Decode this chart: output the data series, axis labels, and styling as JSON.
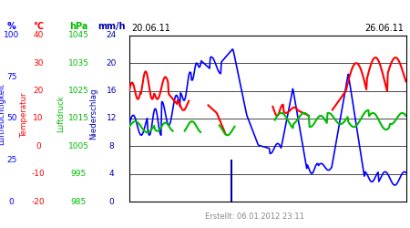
{
  "date_start": "20.06.11",
  "date_end": "26.06.11",
  "footer": "Erstellt: 06.01.2012 23:11",
  "ylabel_humidity": "Luftfeuchtigkeit",
  "ylabel_temp": "Temperatur",
  "ylabel_pressure": "Luftdruck",
  "ylabel_precip": "Niederschlag",
  "unit_humidity": "%",
  "unit_temp": "°C",
  "unit_pressure": "hPa",
  "unit_precip": "mm/h",
  "color_humidity": "#0000ff",
  "color_temp": "#ff0000",
  "color_pressure": "#00bb00",
  "color_precip": "#0000aa",
  "axis_hum_ticks": [
    0,
    25,
    50,
    75,
    100
  ],
  "axis_temp_ticks": [
    -20,
    -10,
    0,
    10,
    20,
    30,
    40
  ],
  "axis_pres_ticks": [
    985,
    995,
    1005,
    1015,
    1025,
    1035,
    1045
  ],
  "axis_precip_ticks": [
    0,
    4,
    8,
    12,
    16,
    20,
    24
  ],
  "hum_min": 0,
  "hum_max": 100,
  "temp_min": -20,
  "temp_max": 40,
  "pres_min": 985,
  "pres_max": 1045,
  "precip_min": 0,
  "precip_max": 24,
  "bg_color": "#ffffff",
  "grid_color": "#000000"
}
